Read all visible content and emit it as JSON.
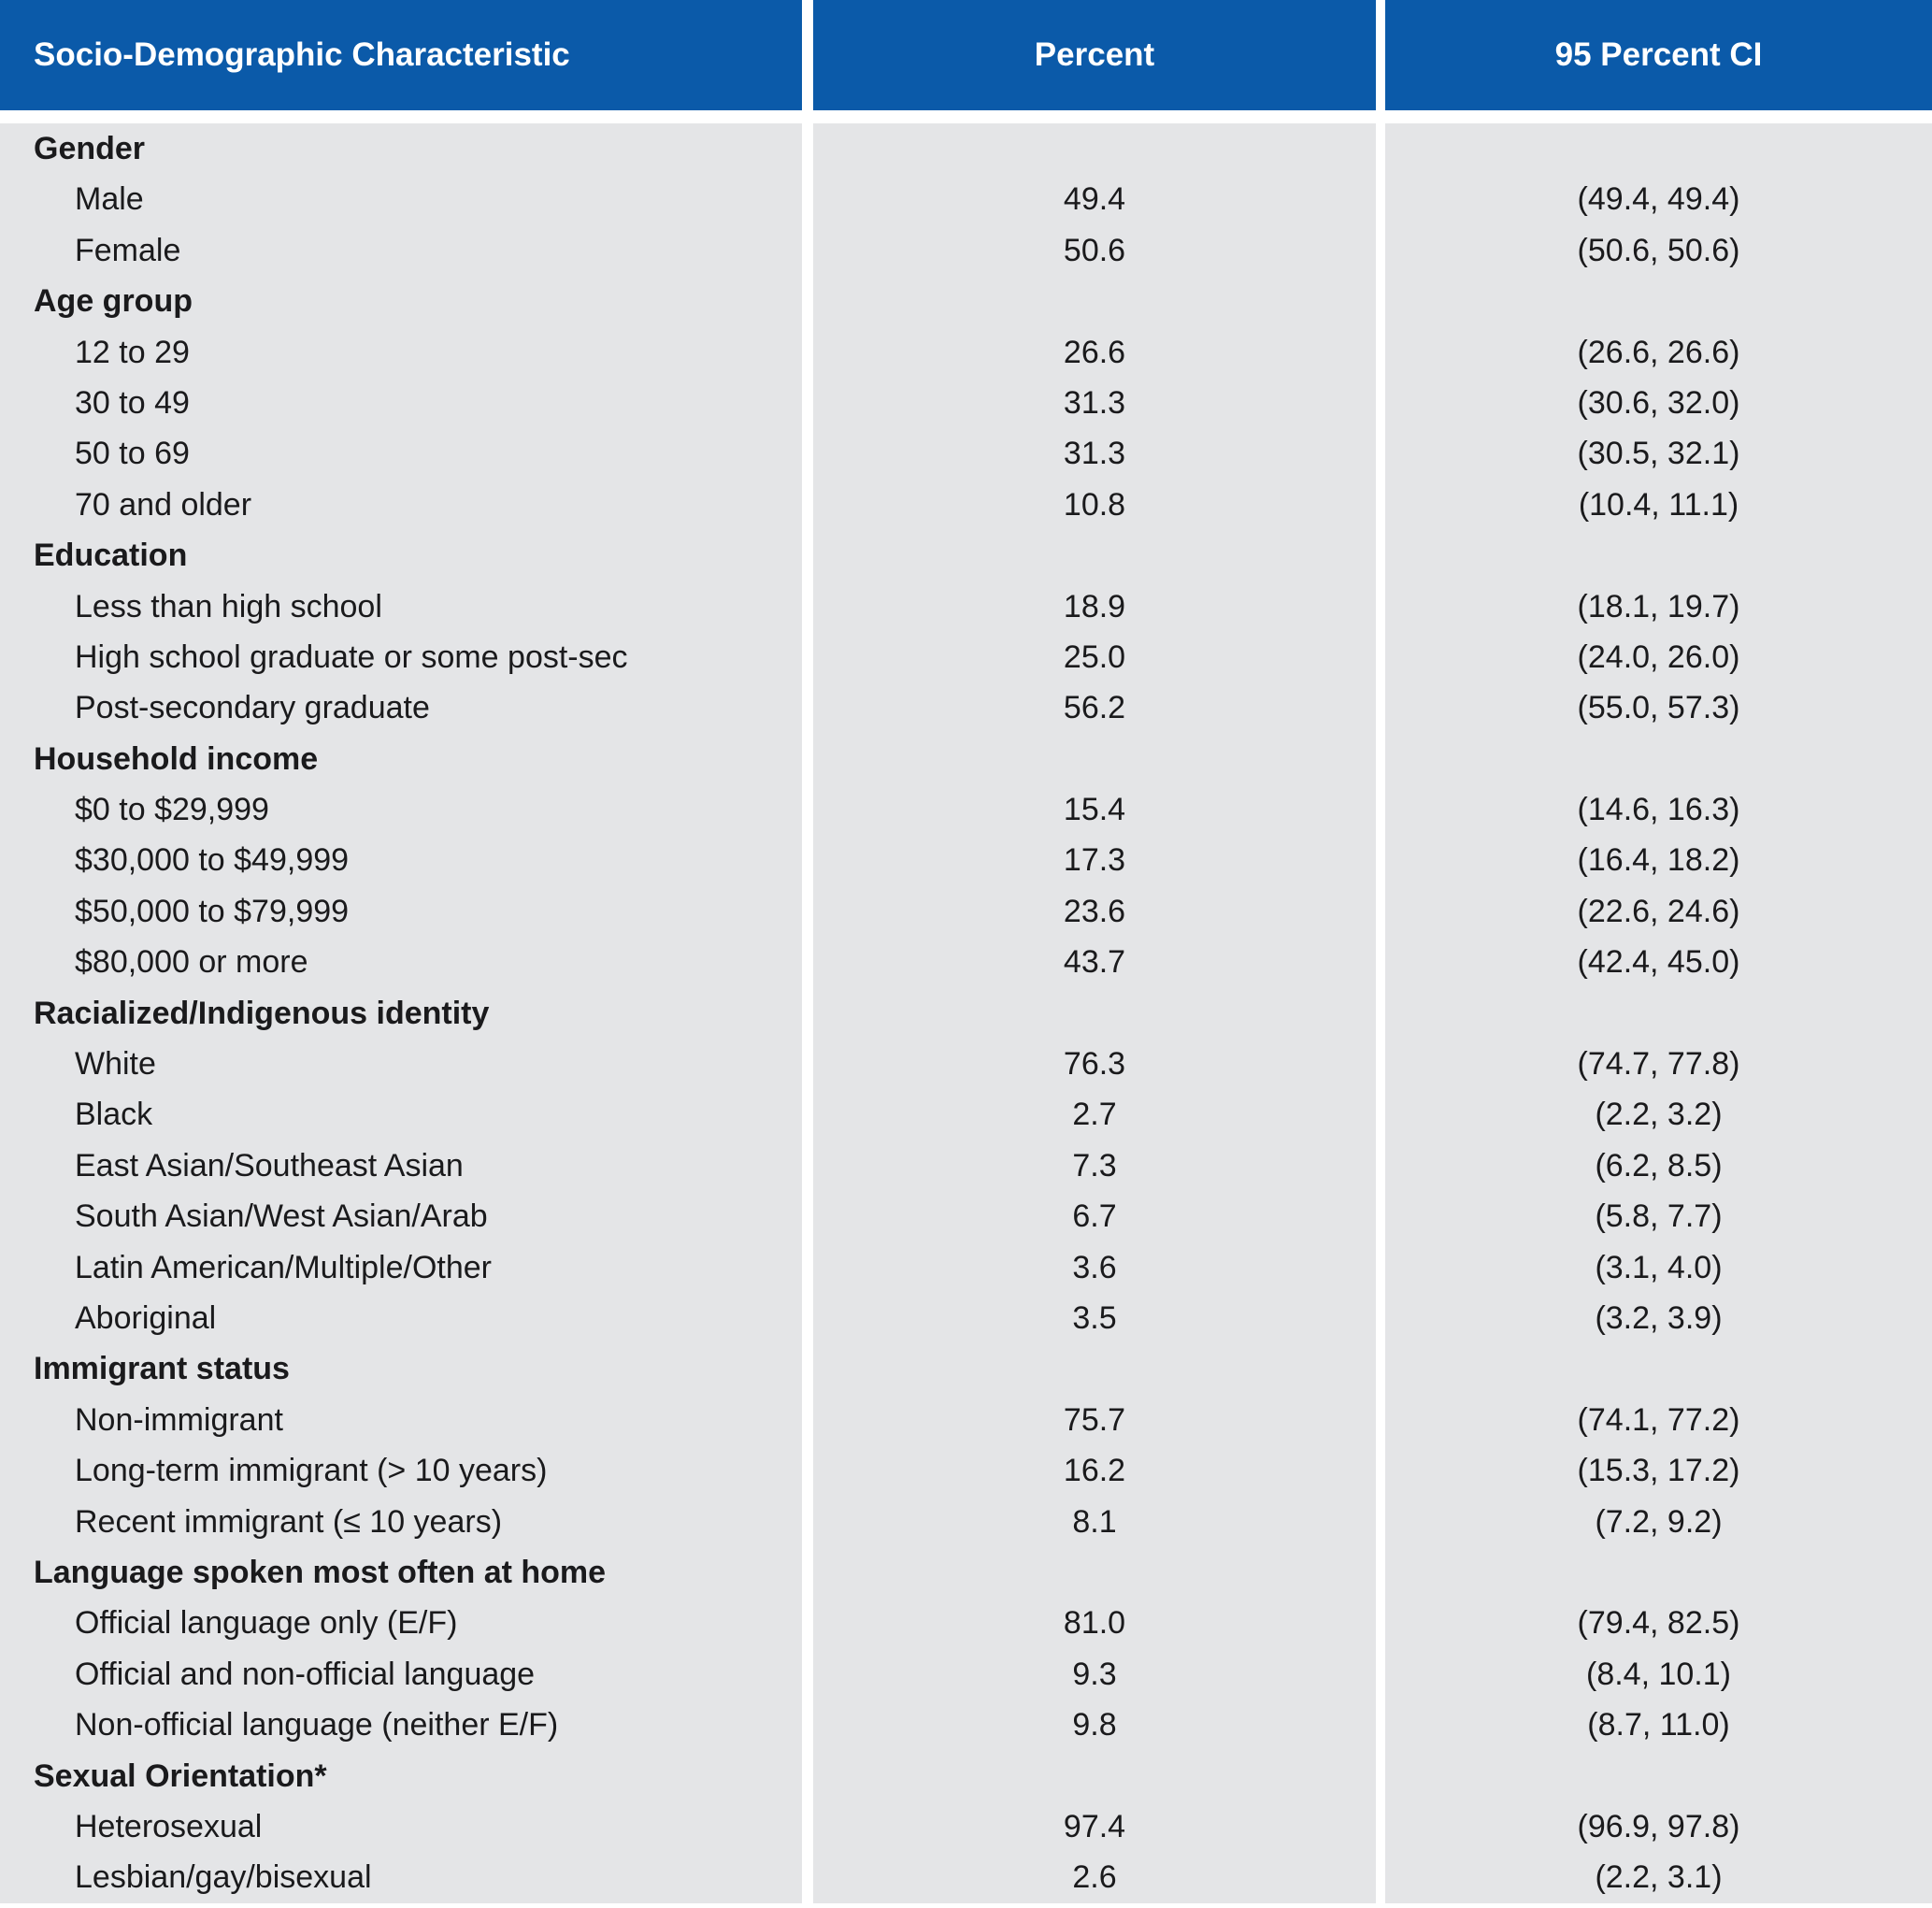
{
  "chart_data": {
    "type": "table",
    "columns": [
      "Socio-Demographic Characteristic",
      "Percent",
      "95 Percent CI"
    ],
    "colors": {
      "header_bg": "#0b5aa9",
      "body_bg": "#e4e5e7",
      "header_text": "#ffffff",
      "body_text": "#1a1a1c"
    },
    "sections": [
      {
        "header": "Gender",
        "rows": [
          {
            "label": "Male",
            "percent": "49.4",
            "ci": "(49.4, 49.4)"
          },
          {
            "label": "Female",
            "percent": "50.6",
            "ci": "(50.6, 50.6)"
          }
        ]
      },
      {
        "header": "Age group",
        "rows": [
          {
            "label": "12 to 29",
            "percent": "26.6",
            "ci": "(26.6, 26.6)"
          },
          {
            "label": "30 to 49",
            "percent": "31.3",
            "ci": "(30.6, 32.0)"
          },
          {
            "label": "50 to 69",
            "percent": "31.3",
            "ci": "(30.5, 32.1)"
          },
          {
            "label": "70 and older",
            "percent": "10.8",
            "ci": "(10.4, 11.1)"
          }
        ]
      },
      {
        "header": "Education",
        "rows": [
          {
            "label": "Less than high school",
            "percent": "18.9",
            "ci": "(18.1, 19.7)"
          },
          {
            "label": "High school graduate or some post-sec",
            "percent": "25.0",
            "ci": "(24.0, 26.0)"
          },
          {
            "label": "Post-secondary graduate",
            "percent": "56.2",
            "ci": "(55.0, 57.3)"
          }
        ]
      },
      {
        "header": "Household income",
        "rows": [
          {
            "label": "$0 to $29,999",
            "percent": "15.4",
            "ci": "(14.6, 16.3)"
          },
          {
            "label": "$30,000 to $49,999",
            "percent": "17.3",
            "ci": "(16.4, 18.2)"
          },
          {
            "label": "$50,000 to $79,999",
            "percent": "23.6",
            "ci": "(22.6, 24.6)"
          },
          {
            "label": "$80,000 or more",
            "percent": "43.7",
            "ci": "(42.4, 45.0)"
          }
        ]
      },
      {
        "header": "Racialized/Indigenous identity",
        "rows": [
          {
            "label": "White",
            "percent": "76.3",
            "ci": "(74.7, 77.8)"
          },
          {
            "label": "Black",
            "percent": "2.7",
            "ci": "(2.2, 3.2)"
          },
          {
            "label": "East Asian/Southeast Asian",
            "percent": "7.3",
            "ci": "(6.2, 8.5)"
          },
          {
            "label": "South Asian/West Asian/Arab",
            "percent": "6.7",
            "ci": "(5.8, 7.7)"
          },
          {
            "label": "Latin American/Multiple/Other",
            "percent": "3.6",
            "ci": "(3.1, 4.0)"
          },
          {
            "label": "Aboriginal",
            "percent": "3.5",
            "ci": "(3.2, 3.9)"
          }
        ]
      },
      {
        "header": "Immigrant status",
        "rows": [
          {
            "label": "Non-immigrant",
            "percent": "75.7",
            "ci": "(74.1, 77.2)"
          },
          {
            "label": "Long-term immigrant (> 10 years)",
            "percent": "16.2",
            "ci": "(15.3, 17.2)"
          },
          {
            "label": "Recent immigrant (≤ 10 years)",
            "percent": "8.1",
            "ci": "(7.2, 9.2)"
          }
        ]
      },
      {
        "header": "Language spoken most often at home",
        "rows": [
          {
            "label": "Official language only (E/F)",
            "percent": "81.0",
            "ci": "(79.4, 82.5)"
          },
          {
            "label": "Official and non-official language",
            "percent": "9.3",
            "ci": "(8.4, 10.1)"
          },
          {
            "label": "Non-official language (neither E/F)",
            "percent": "9.8",
            "ci": "(8.7, 11.0)"
          }
        ]
      },
      {
        "header": "Sexual Orientation*",
        "rows": [
          {
            "label": "Heterosexual",
            "percent": "97.4",
            "ci": "(96.9, 97.8)"
          },
          {
            "label": "Lesbian/gay/bisexual",
            "percent": "2.6",
            "ci": "(2.2, 3.1)"
          }
        ]
      }
    ]
  }
}
